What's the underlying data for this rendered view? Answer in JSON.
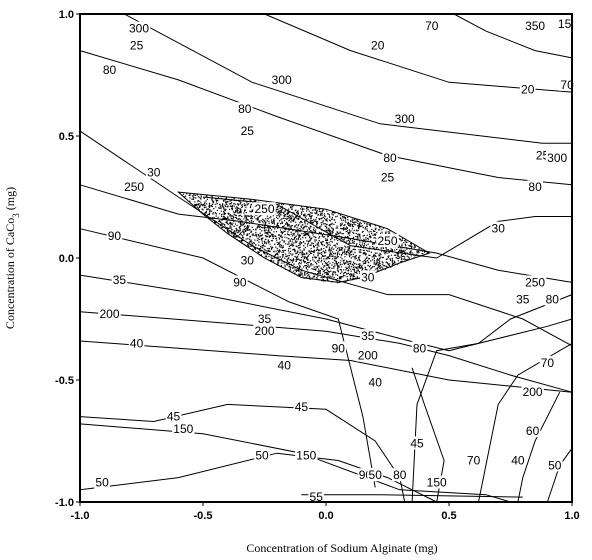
{
  "chart_data": {
    "type": "contour",
    "title": "",
    "xlabel": "Concentration of Sodium Alginate (mg)",
    "ylabel": "Concentration of CaCo",
    "ylabel_sub": "3",
    "ylabel_unit": " (mg)",
    "xlim": [
      -1.0,
      1.0
    ],
    "ylim": [
      -1.0,
      1.0
    ],
    "xticks": [
      {
        "value": -1.0,
        "label": "-1.0"
      },
      {
        "value": -0.5,
        "label": "-0.5"
      },
      {
        "value": 0.0,
        "label": "0.0"
      },
      {
        "value": 0.5,
        "label": "0.5"
      },
      {
        "value": 1.0,
        "label": "1.0"
      }
    ],
    "yticks": [
      {
        "value": 1.0,
        "label": "1.0"
      },
      {
        "value": 0.5,
        "label": "0.5"
      },
      {
        "value": 0.0,
        "label": "0.0"
      },
      {
        "value": -0.5,
        "label": "-0.5"
      },
      {
        "value": -1.0,
        "label": "-1.0"
      }
    ],
    "grid": false,
    "legend": "none",
    "contours": [
      {
        "points": [
          [
            -0.82,
            1.0
          ],
          [
            -0.3,
            0.72
          ],
          [
            0.22,
            0.55
          ],
          [
            0.88,
            0.47
          ],
          [
            1.0,
            0.47
          ]
        ]
      },
      {
        "points": [
          [
            -1.0,
            0.85
          ],
          [
            -0.6,
            0.73
          ],
          [
            -0.2,
            0.58
          ],
          [
            0.25,
            0.42
          ],
          [
            0.7,
            0.33
          ],
          [
            1.0,
            0.3
          ]
        ]
      },
      {
        "points": [
          [
            -0.25,
            1.0
          ],
          [
            0.1,
            0.85
          ],
          [
            0.5,
            0.72
          ],
          [
            0.75,
            0.7
          ],
          [
            1.0,
            0.68
          ]
        ]
      },
      {
        "points": [
          [
            0.52,
            1.0
          ],
          [
            0.65,
            0.93
          ],
          [
            0.85,
            0.85
          ],
          [
            1.0,
            0.82
          ]
        ]
      },
      {
        "points": [
          [
            -1.0,
            0.52
          ],
          [
            -0.6,
            0.25
          ],
          [
            -0.3,
            0.05
          ],
          [
            -0.1,
            -0.05
          ],
          [
            0.25,
            -0.15
          ],
          [
            0.5,
            -0.15
          ],
          [
            0.8,
            -0.25
          ],
          [
            1.0,
            -0.36
          ]
        ]
      },
      {
        "points": [
          [
            -1.0,
            0.3
          ],
          [
            -0.6,
            0.18
          ],
          [
            -0.35,
            0.15
          ],
          [
            0.1,
            0.08
          ],
          [
            0.45,
            0.02
          ],
          [
            0.7,
            -0.05
          ],
          [
            1.0,
            -0.1
          ]
        ]
      },
      {
        "points": [
          [
            -0.5,
            0.25
          ],
          [
            -0.2,
            0.22
          ],
          [
            0.1,
            0.05
          ],
          [
            0.45,
            0.0
          ],
          [
            0.7,
            0.15
          ],
          [
            0.85,
            0.17
          ],
          [
            1.0,
            0.17
          ]
        ]
      },
      {
        "points": [
          [
            -1.0,
            0.12
          ],
          [
            -0.5,
            0.0
          ],
          [
            -0.15,
            -0.18
          ],
          [
            0.05,
            -0.25
          ],
          [
            0.15,
            -0.65
          ],
          [
            0.2,
            -0.94
          ]
        ]
      },
      {
        "points": [
          [
            -1.0,
            -0.07
          ],
          [
            -0.5,
            -0.15
          ],
          [
            0.0,
            -0.25
          ],
          [
            0.3,
            -0.33
          ],
          [
            0.5,
            -0.38
          ],
          [
            0.9,
            -0.28
          ],
          [
            1.0,
            -0.25
          ]
        ]
      },
      {
        "points": [
          [
            -1.0,
            -0.22
          ],
          [
            -0.5,
            -0.26
          ],
          [
            0.0,
            -0.3
          ],
          [
            0.3,
            -0.35
          ],
          [
            0.5,
            -0.4
          ],
          [
            0.75,
            -0.48
          ],
          [
            1.0,
            -0.55
          ]
        ]
      },
      {
        "points": [
          [
            -1.0,
            -0.34
          ],
          [
            -0.6,
            -0.37
          ],
          [
            -0.2,
            -0.4
          ],
          [
            0.1,
            -0.42
          ],
          [
            0.5,
            -0.5
          ],
          [
            1.0,
            -0.55
          ]
        ]
      },
      {
        "points": [
          [
            0.35,
            -1.0
          ],
          [
            0.37,
            -0.6
          ],
          [
            0.45,
            -0.38
          ],
          [
            0.62,
            -0.35
          ],
          [
            0.75,
            -0.25
          ],
          [
            1.0,
            -0.15
          ]
        ]
      },
      {
        "points": [
          [
            0.62,
            -1.0
          ],
          [
            0.7,
            -0.6
          ],
          [
            0.78,
            -0.48
          ],
          [
            1.0,
            -0.35
          ]
        ]
      },
      {
        "points": [
          [
            0.45,
            -1.0
          ],
          [
            0.48,
            -0.83
          ],
          [
            0.4,
            -0.6
          ],
          [
            0.35,
            -0.45
          ]
        ]
      },
      {
        "points": [
          [
            -1.0,
            -0.65
          ],
          [
            -0.7,
            -0.67
          ],
          [
            -0.4,
            -0.6
          ],
          [
            0.0,
            -0.62
          ],
          [
            0.2,
            -0.75
          ],
          [
            0.3,
            -0.9
          ],
          [
            0.32,
            -1.0
          ]
        ]
      },
      {
        "points": [
          [
            -1.0,
            -0.68
          ],
          [
            -0.5,
            -0.72
          ],
          [
            -0.1,
            -0.8
          ],
          [
            0.3,
            -0.95
          ],
          [
            0.65,
            -0.97
          ],
          [
            0.75,
            -1.0
          ]
        ]
      },
      {
        "points": [
          [
            -1.0,
            -0.95
          ],
          [
            -0.6,
            -0.9
          ],
          [
            -0.2,
            -0.8
          ],
          [
            0.05,
            -0.83
          ],
          [
            0.25,
            -0.9
          ],
          [
            0.45,
            -1.0
          ]
        ]
      },
      {
        "points": [
          [
            0.95,
            -0.55
          ],
          [
            0.85,
            -0.75
          ],
          [
            0.8,
            -0.9
          ],
          [
            0.78,
            -1.0
          ]
        ]
      },
      {
        "points": [
          [
            0.9,
            -1.0
          ],
          [
            0.95,
            -0.85
          ],
          [
            1.0,
            -0.78
          ]
        ]
      },
      {
        "points": [
          [
            -0.1,
            -0.97
          ],
          [
            0.2,
            -0.97
          ],
          [
            0.8,
            -0.98
          ]
        ]
      }
    ],
    "contour_labels": [
      {
        "text": "300",
        "x": -0.76,
        "y": 0.94
      },
      {
        "text": "25",
        "x": -0.77,
        "y": 0.87
      },
      {
        "text": "80",
        "x": -0.88,
        "y": 0.77
      },
      {
        "text": "300",
        "x": -0.18,
        "y": 0.73
      },
      {
        "text": "80",
        "x": -0.33,
        "y": 0.61
      },
      {
        "text": "25",
        "x": -0.32,
        "y": 0.52
      },
      {
        "text": "20",
        "x": 0.21,
        "y": 0.87
      },
      {
        "text": "70",
        "x": 0.43,
        "y": 0.95
      },
      {
        "text": "350",
        "x": 0.85,
        "y": 0.95
      },
      {
        "text": "15",
        "x": 0.97,
        "y": 0.96
      },
      {
        "text": "70",
        "x": 0.98,
        "y": 0.71
      },
      {
        "text": "20",
        "x": 0.82,
        "y": 0.69
      },
      {
        "text": "300",
        "x": 0.32,
        "y": 0.57
      },
      {
        "text": "25",
        "x": 0.88,
        "y": 0.42
      },
      {
        "text": "300",
        "x": 0.94,
        "y": 0.41
      },
      {
        "text": "80",
        "x": 0.26,
        "y": 0.41
      },
      {
        "text": "25",
        "x": 0.25,
        "y": 0.33
      },
      {
        "text": "80",
        "x": 0.85,
        "y": 0.29
      },
      {
        "text": "30",
        "x": -0.7,
        "y": 0.35
      },
      {
        "text": "250",
        "x": -0.78,
        "y": 0.29
      },
      {
        "text": "250",
        "x": -0.25,
        "y": 0.2
      },
      {
        "text": "90",
        "x": -0.86,
        "y": 0.09
      },
      {
        "text": "250",
        "x": 0.25,
        "y": 0.07
      },
      {
        "text": "30",
        "x": -0.32,
        "y": -0.01
      },
      {
        "text": "30",
        "x": 0.17,
        "y": -0.08
      },
      {
        "text": "30",
        "x": 0.7,
        "y": 0.12
      },
      {
        "text": "35",
        "x": -0.84,
        "y": -0.09
      },
      {
        "text": "90",
        "x": -0.35,
        "y": -0.1
      },
      {
        "text": "250",
        "x": 0.85,
        "y": -0.1
      },
      {
        "text": "35",
        "x": 0.8,
        "y": -0.17
      },
      {
        "text": "80",
        "x": 0.92,
        "y": -0.17
      },
      {
        "text": "200",
        "x": -0.88,
        "y": -0.23
      },
      {
        "text": "35",
        "x": -0.25,
        "y": -0.25
      },
      {
        "text": "200",
        "x": -0.25,
        "y": -0.3
      },
      {
        "text": "35",
        "x": 0.17,
        "y": -0.32
      },
      {
        "text": "90",
        "x": 0.05,
        "y": -0.37
      },
      {
        "text": "80",
        "x": 0.38,
        "y": -0.37
      },
      {
        "text": "200",
        "x": 0.17,
        "y": -0.4
      },
      {
        "text": "40",
        "x": -0.77,
        "y": -0.35
      },
      {
        "text": "40",
        "x": -0.17,
        "y": -0.44
      },
      {
        "text": "40",
        "x": 0.2,
        "y": -0.51
      },
      {
        "text": "70",
        "x": 0.9,
        "y": -0.43
      },
      {
        "text": "200",
        "x": 0.84,
        "y": -0.55
      },
      {
        "text": "45",
        "x": -0.62,
        "y": -0.65
      },
      {
        "text": "45",
        "x": -0.1,
        "y": -0.61
      },
      {
        "text": "150",
        "x": -0.58,
        "y": -0.7
      },
      {
        "text": "60",
        "x": 0.84,
        "y": -0.71
      },
      {
        "text": "45",
        "x": 0.37,
        "y": -0.76
      },
      {
        "text": "50",
        "x": -0.26,
        "y": -0.81
      },
      {
        "text": "150",
        "x": -0.08,
        "y": -0.81
      },
      {
        "text": "70",
        "x": 0.6,
        "y": -0.83
      },
      {
        "text": "40",
        "x": 0.78,
        "y": -0.83
      },
      {
        "text": "50",
        "x": 0.93,
        "y": -0.85
      },
      {
        "text": "90",
        "x": 0.16,
        "y": -0.89
      },
      {
        "text": "50",
        "x": 0.2,
        "y": -0.89
      },
      {
        "text": "80",
        "x": 0.3,
        "y": -0.89
      },
      {
        "text": "150",
        "x": 0.45,
        "y": -0.92
      },
      {
        "text": "50",
        "x": -0.91,
        "y": -0.92
      },
      {
        "text": "55",
        "x": -0.04,
        "y": -0.98
      }
    ],
    "stipple_region": {
      "boundary": [
        [
          -0.6,
          0.27
        ],
        [
          -0.3,
          0.24
        ],
        [
          0.0,
          0.2
        ],
        [
          0.25,
          0.12
        ],
        [
          0.42,
          0.02
        ],
        [
          0.3,
          -0.02
        ],
        [
          0.15,
          -0.08
        ],
        [
          0.05,
          -0.1
        ],
        [
          -0.1,
          -0.08
        ],
        [
          -0.25,
          0.0
        ],
        [
          -0.4,
          0.1
        ],
        [
          -0.5,
          0.18
        ],
        [
          -0.6,
          0.27
        ]
      ]
    }
  }
}
